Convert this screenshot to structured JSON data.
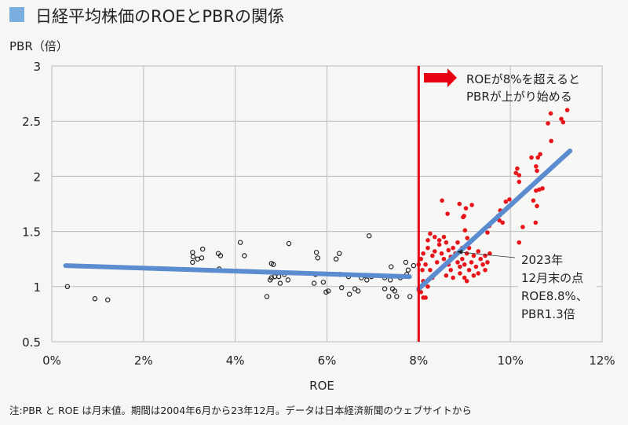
{
  "chart_data": {
    "type": "scatter",
    "title": "日経平均株価のROEとPBRの関係",
    "xlabel": "ROE",
    "ylabel": "PBR（倍）",
    "xlim": [
      0,
      12
    ],
    "ylim": [
      0.5,
      3
    ],
    "xticks": [
      "0%",
      "2%",
      "4%",
      "6%",
      "8%",
      "10%",
      "12%"
    ],
    "yticks": [
      "0.5",
      "1",
      "1.5",
      "2",
      "2.5",
      "3"
    ],
    "grid": true,
    "colors": {
      "below8": "#222222",
      "above8": "#e8161b",
      "trend": "#5a8ccf",
      "threshold": "#e60012",
      "title_square": "#7aaee0"
    },
    "series_below8": [
      [
        0.34,
        1.0
      ],
      [
        0.94,
        0.89
      ],
      [
        1.22,
        0.88
      ],
      [
        3.07,
        1.31
      ],
      [
        3.08,
        1.27
      ],
      [
        3.18,
        1.25
      ],
      [
        3.27,
        1.26
      ],
      [
        3.07,
        1.22
      ],
      [
        3.29,
        1.34
      ],
      [
        3.63,
        1.3
      ],
      [
        3.68,
        1.28
      ],
      [
        3.65,
        1.16
      ],
      [
        4.11,
        1.4
      ],
      [
        4.2,
        1.28
      ],
      [
        4.69,
        0.91
      ],
      [
        4.79,
        1.21
      ],
      [
        4.83,
        1.2
      ],
      [
        4.86,
        1.09
      ],
      [
        4.79,
        1.08
      ],
      [
        4.95,
        1.09
      ],
      [
        4.76,
        1.06
      ],
      [
        5.07,
        1.11
      ],
      [
        4.98,
        1.03
      ],
      [
        5.17,
        1.39
      ],
      [
        5.15,
        1.06
      ],
      [
        5.72,
        1.03
      ],
      [
        5.75,
        1.11
      ],
      [
        5.77,
        1.31
      ],
      [
        5.8,
        1.26
      ],
      [
        5.92,
        1.04
      ],
      [
        5.98,
        0.95
      ],
      [
        6.03,
        0.96
      ],
      [
        6.2,
        1.25
      ],
      [
        6.27,
        1.3
      ],
      [
        6.28,
        1.11
      ],
      [
        6.32,
        0.99
      ],
      [
        6.47,
        1.09
      ],
      [
        6.49,
        0.93
      ],
      [
        6.61,
        0.98
      ],
      [
        6.68,
        0.96
      ],
      [
        6.75,
        1.08
      ],
      [
        6.82,
        1.1
      ],
      [
        6.92,
        1.46
      ],
      [
        6.87,
        1.06
      ],
      [
        6.97,
        1.09
      ],
      [
        7.26,
        1.08
      ],
      [
        7.4,
        1.18
      ],
      [
        7.38,
        1.06
      ],
      [
        7.43,
        0.98
      ],
      [
        7.48,
        0.96
      ],
      [
        7.52,
        0.91
      ],
      [
        7.6,
        1.08
      ],
      [
        7.72,
        1.22
      ],
      [
        7.74,
        1.11
      ],
      [
        7.77,
        1.15
      ],
      [
        7.81,
        0.91
      ],
      [
        7.89,
        1.19
      ],
      [
        7.26,
        0.98
      ],
      [
        7.35,
        0.91
      ]
    ],
    "series_above8": [
      [
        10.88,
        2.57
      ],
      [
        11.24,
        2.6
      ],
      [
        11.11,
        2.52
      ],
      [
        11.15,
        2.49
      ],
      [
        10.82,
        2.48
      ],
      [
        10.89,
        2.32
      ],
      [
        10.46,
        2.17
      ],
      [
        10.6,
        2.17
      ],
      [
        10.65,
        2.2
      ],
      [
        10.56,
        2.09
      ],
      [
        10.58,
        2.05
      ],
      [
        10.15,
        2.07
      ],
      [
        10.12,
        2.03
      ],
      [
        10.19,
        2.01
      ],
      [
        10.19,
        1.95
      ],
      [
        10.56,
        1.87
      ],
      [
        10.63,
        1.88
      ],
      [
        10.7,
        1.89
      ],
      [
        10.5,
        1.78
      ],
      [
        10.58,
        1.73
      ],
      [
        10.55,
        1.58
      ],
      [
        10.27,
        1.54
      ],
      [
        10.19,
        1.4
      ],
      [
        9.98,
        1.79
      ],
      [
        9.9,
        1.77
      ],
      [
        9.78,
        1.69
      ],
      [
        9.83,
        1.68
      ],
      [
        9.73,
        1.64
      ],
      [
        9.76,
        1.6
      ],
      [
        9.83,
        1.58
      ],
      [
        9.54,
        1.55
      ],
      [
        9.5,
        1.49
      ],
      [
        8.51,
        1.78
      ],
      [
        8.63,
        1.66
      ],
      [
        8.89,
        1.75
      ],
      [
        9.03,
        1.71
      ],
      [
        9.16,
        1.74
      ],
      [
        8.99,
        1.64
      ],
      [
        8.97,
        1.63
      ],
      [
        9.01,
        1.51
      ],
      [
        9.06,
        1.44
      ],
      [
        8.25,
        1.48
      ],
      [
        8.05,
        1.25
      ],
      [
        8.1,
        1.3
      ],
      [
        8.15,
        1.2
      ],
      [
        8.2,
        1.35
      ],
      [
        8.25,
        1.15
      ],
      [
        8.3,
        1.28
      ],
      [
        8.35,
        1.32
      ],
      [
        8.4,
        1.22
      ],
      [
        8.45,
        1.38
      ],
      [
        8.5,
        1.3
      ],
      [
        8.55,
        1.25
      ],
      [
        8.6,
        1.4
      ],
      [
        8.65,
        1.33
      ],
      [
        8.7,
        1.27
      ],
      [
        8.75,
        1.35
      ],
      [
        8.8,
        1.3
      ],
      [
        8.85,
        1.22
      ],
      [
        8.9,
        1.18
      ],
      [
        8.95,
        1.25
      ],
      [
        9.0,
        1.2
      ],
      [
        9.05,
        1.3
      ],
      [
        9.1,
        1.15
      ],
      [
        9.15,
        1.22
      ],
      [
        9.2,
        1.28
      ],
      [
        9.25,
        1.18
      ],
      [
        9.3,
        1.12
      ],
      [
        9.35,
        1.25
      ],
      [
        9.4,
        1.2
      ],
      [
        9.45,
        1.15
      ],
      [
        9.5,
        1.22
      ],
      [
        8.1,
        1.05
      ],
      [
        8.05,
        0.95
      ],
      [
        8.15,
        0.9
      ],
      [
        8.2,
        1.0
      ],
      [
        8.3,
        1.08
      ],
      [
        8.6,
        1.1
      ],
      [
        8.7,
        1.15
      ],
      [
        8.9,
        1.12
      ],
      [
        9.0,
        1.08
      ],
      [
        9.2,
        1.1
      ],
      [
        8.55,
        1.45
      ],
      [
        8.45,
        1.42
      ],
      [
        8.65,
        1.2
      ],
      [
        8.85,
        1.4
      ],
      [
        9.1,
        1.35
      ],
      [
        9.45,
        1.28
      ],
      [
        9.55,
        1.3
      ],
      [
        8.2,
        1.42
      ],
      [
        8.0,
        1.2
      ],
      [
        8.08,
        1.15
      ],
      [
        8.35,
        1.45
      ],
      [
        8.75,
        1.08
      ],
      [
        9.05,
        1.05
      ],
      [
        8.95,
        1.35
      ],
      [
        9.3,
        1.32
      ],
      [
        8.0,
        0.97
      ],
      [
        8.1,
        0.9
      ]
    ],
    "trend_below8": [
      [
        0.3,
        1.19
      ],
      [
        7.8,
        1.09
      ]
    ],
    "trend_above8": [
      [
        8.0,
        0.98
      ],
      [
        11.3,
        2.23
      ]
    ],
    "threshold_x": 8,
    "annotations": {
      "arrow_text": [
        "ROEが8%を超えると",
        "PBRが上がり始める"
      ],
      "point_label": [
        "2023年",
        "12月末の点",
        "ROE8.8%、",
        "PBR1.3倍"
      ],
      "point": [
        8.8,
        1.3
      ]
    },
    "note": "注:PBR と ROE は月末値。期間は2004年6月から23年12月。データは日本経済新聞のウェブサイトから"
  }
}
